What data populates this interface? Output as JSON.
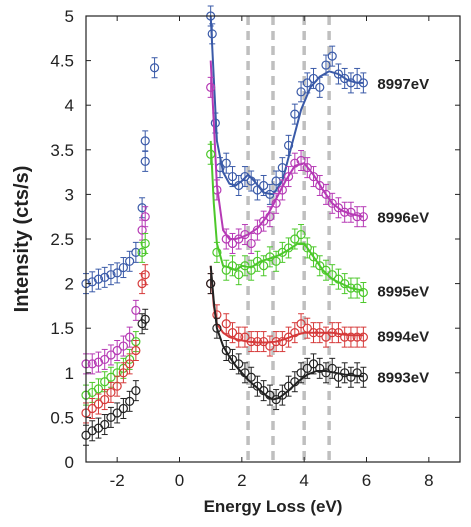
{
  "chart_data": {
    "type": "scatter",
    "xlabel": "Energy Loss (eV)",
    "ylabel": "Intensity (cts/s)",
    "xlim": [
      -3,
      9
    ],
    "ylim": [
      0,
      5
    ],
    "x_ticks": [
      -2,
      0,
      2,
      4,
      6,
      8
    ],
    "y_ticks": [
      0,
      0.5,
      1,
      1.5,
      2,
      2.5,
      3,
      3.5,
      4,
      4.5,
      5
    ],
    "x_tick_labels": [
      "-2",
      "0",
      "2",
      "4",
      "6",
      "8"
    ],
    "y_tick_labels": [
      "0",
      "0.5",
      "1",
      "1.5",
      "2",
      "2.5",
      "3",
      "3.5",
      "4",
      "4.5",
      "5"
    ],
    "reference_lines_x": [
      2.2,
      3.0,
      4.0,
      4.8
    ],
    "reference_line_color": "#bfbfbf",
    "grid": false,
    "legend": "labels at right end of each series",
    "series": [
      {
        "name": "8997eV",
        "color": "#3a5aa8",
        "points": [
          [
            -3.0,
            2.0
          ],
          [
            -2.8,
            2.02
          ],
          [
            -2.6,
            2.05
          ],
          [
            -2.4,
            2.07
          ],
          [
            -2.2,
            2.1
          ],
          [
            -2.0,
            2.12
          ],
          [
            -1.8,
            2.18
          ],
          [
            -1.6,
            2.25
          ],
          [
            -1.4,
            2.35
          ],
          [
            -1.2,
            2.85
          ],
          [
            -1.1,
            3.6
          ],
          [
            -1.1,
            3.37
          ],
          [
            -0.8,
            4.42
          ],
          [
            1.0,
            5.0
          ],
          [
            1.05,
            4.8
          ],
          [
            1.15,
            3.8
          ],
          [
            1.3,
            3.3
          ],
          [
            1.5,
            3.35
          ],
          [
            1.7,
            3.2
          ],
          [
            1.9,
            3.1
          ],
          [
            2.1,
            3.2
          ],
          [
            2.3,
            3.15
          ],
          [
            2.5,
            3.05
          ],
          [
            2.7,
            3.1
          ],
          [
            2.9,
            3.0
          ],
          [
            3.1,
            3.15
          ],
          [
            3.3,
            3.3
          ],
          [
            3.5,
            3.55
          ],
          [
            3.7,
            3.9
          ],
          [
            3.9,
            4.15
          ],
          [
            4.1,
            4.25
          ],
          [
            4.3,
            4.3
          ],
          [
            4.5,
            4.2
          ],
          [
            4.7,
            4.45
          ],
          [
            4.9,
            4.55
          ],
          [
            5.1,
            4.35
          ],
          [
            5.3,
            4.3
          ],
          [
            5.5,
            4.25
          ],
          [
            5.7,
            4.3
          ],
          [
            5.9,
            4.25
          ]
        ],
        "fit": [
          [
            1.0,
            5.0
          ],
          [
            1.1,
            4.3
          ],
          [
            1.2,
            3.6
          ],
          [
            1.4,
            3.25
          ],
          [
            1.6,
            3.12
          ],
          [
            1.8,
            3.1
          ],
          [
            2.0,
            3.15
          ],
          [
            2.2,
            3.22
          ],
          [
            2.4,
            3.15
          ],
          [
            2.7,
            3.02
          ],
          [
            3.0,
            3.0
          ],
          [
            3.3,
            3.15
          ],
          [
            3.6,
            3.55
          ],
          [
            3.9,
            3.95
          ],
          [
            4.2,
            4.2
          ],
          [
            4.5,
            4.32
          ],
          [
            4.8,
            4.38
          ],
          [
            5.1,
            4.35
          ],
          [
            5.4,
            4.28
          ],
          [
            5.7,
            4.25
          ],
          [
            5.9,
            4.25
          ]
        ]
      },
      {
        "name": "8996eV",
        "color": "#b63ab5",
        "points": [
          [
            -3.0,
            1.1
          ],
          [
            -2.8,
            1.1
          ],
          [
            -2.6,
            1.12
          ],
          [
            -2.4,
            1.15
          ],
          [
            -2.2,
            1.2
          ],
          [
            -2.0,
            1.25
          ],
          [
            -1.8,
            1.3
          ],
          [
            -1.6,
            1.4
          ],
          [
            -1.4,
            1.7
          ],
          [
            -1.2,
            2.6
          ],
          [
            -1.1,
            2.75
          ],
          [
            1.0,
            4.2
          ],
          [
            1.2,
            3.05
          ],
          [
            1.5,
            2.5
          ],
          [
            1.7,
            2.45
          ],
          [
            1.9,
            2.5
          ],
          [
            2.1,
            2.55
          ],
          [
            2.3,
            2.45
          ],
          [
            2.5,
            2.6
          ],
          [
            2.7,
            2.7
          ],
          [
            2.9,
            2.75
          ],
          [
            3.1,
            2.9
          ],
          [
            3.3,
            3.05
          ],
          [
            3.5,
            3.2
          ],
          [
            3.7,
            3.35
          ],
          [
            3.9,
            3.38
          ],
          [
            4.1,
            3.3
          ],
          [
            4.3,
            3.2
          ],
          [
            4.5,
            3.1
          ],
          [
            4.7,
            3.0
          ],
          [
            4.9,
            2.9
          ],
          [
            5.1,
            2.85
          ],
          [
            5.3,
            2.8
          ],
          [
            5.5,
            2.8
          ],
          [
            5.7,
            2.75
          ],
          [
            5.9,
            2.75
          ]
        ],
        "fit": [
          [
            1.0,
            4.5
          ],
          [
            1.1,
            3.8
          ],
          [
            1.2,
            3.1
          ],
          [
            1.4,
            2.6
          ],
          [
            1.6,
            2.5
          ],
          [
            1.8,
            2.5
          ],
          [
            2.0,
            2.52
          ],
          [
            2.2,
            2.55
          ],
          [
            2.5,
            2.62
          ],
          [
            2.8,
            2.75
          ],
          [
            3.1,
            2.95
          ],
          [
            3.4,
            3.15
          ],
          [
            3.7,
            3.32
          ],
          [
            4.0,
            3.35
          ],
          [
            4.3,
            3.22
          ],
          [
            4.6,
            3.05
          ],
          [
            4.9,
            2.9
          ],
          [
            5.2,
            2.82
          ],
          [
            5.5,
            2.78
          ],
          [
            5.9,
            2.75
          ]
        ]
      },
      {
        "name": "8995eV",
        "color": "#4cc82a",
        "points": [
          [
            -3.0,
            0.75
          ],
          [
            -2.8,
            0.78
          ],
          [
            -2.6,
            0.82
          ],
          [
            -2.4,
            0.9
          ],
          [
            -2.2,
            0.95
          ],
          [
            -2.0,
            1.0
          ],
          [
            -1.8,
            1.05
          ],
          [
            -1.6,
            1.15
          ],
          [
            -1.4,
            1.35
          ],
          [
            -1.2,
            2.35
          ],
          [
            -1.1,
            2.45
          ],
          [
            1.0,
            3.45
          ],
          [
            1.2,
            2.35
          ],
          [
            1.5,
            2.15
          ],
          [
            1.7,
            2.2
          ],
          [
            1.9,
            2.1
          ],
          [
            2.1,
            2.2
          ],
          [
            2.3,
            2.15
          ],
          [
            2.5,
            2.25
          ],
          [
            2.7,
            2.2
          ],
          [
            2.9,
            2.3
          ],
          [
            3.1,
            2.25
          ],
          [
            3.3,
            2.35
          ],
          [
            3.5,
            2.4
          ],
          [
            3.7,
            2.5
          ],
          [
            3.9,
            2.55
          ],
          [
            4.1,
            2.4
          ],
          [
            4.3,
            2.3
          ],
          [
            4.5,
            2.2
          ],
          [
            4.7,
            2.15
          ],
          [
            4.9,
            2.1
          ],
          [
            5.1,
            2.05
          ],
          [
            5.3,
            2.0
          ],
          [
            5.5,
            1.95
          ],
          [
            5.7,
            1.95
          ],
          [
            5.9,
            1.9
          ]
        ],
        "fit": [
          [
            1.0,
            3.6
          ],
          [
            1.1,
            2.9
          ],
          [
            1.2,
            2.45
          ],
          [
            1.4,
            2.2
          ],
          [
            1.6,
            2.18
          ],
          [
            1.8,
            2.15
          ],
          [
            2.0,
            2.2
          ],
          [
            2.3,
            2.18
          ],
          [
            2.6,
            2.25
          ],
          [
            2.9,
            2.28
          ],
          [
            3.2,
            2.32
          ],
          [
            3.5,
            2.38
          ],
          [
            3.8,
            2.45
          ],
          [
            4.0,
            2.45
          ],
          [
            4.3,
            2.3
          ],
          [
            4.6,
            2.15
          ],
          [
            4.9,
            2.05
          ],
          [
            5.2,
            2.0
          ],
          [
            5.5,
            1.95
          ],
          [
            5.9,
            1.92
          ]
        ]
      },
      {
        "name": "8994eV",
        "color": "#d63a3a",
        "points": [
          [
            -3.0,
            0.55
          ],
          [
            -2.8,
            0.6
          ],
          [
            -2.6,
            0.65
          ],
          [
            -2.4,
            0.7
          ],
          [
            -2.2,
            0.78
          ],
          [
            -2.0,
            0.85
          ],
          [
            -1.8,
            1.0
          ],
          [
            -1.6,
            1.1
          ],
          [
            -1.4,
            1.25
          ],
          [
            -1.2,
            2.0
          ],
          [
            -1.1,
            2.1
          ],
          [
            1.0,
            2.0
          ],
          [
            1.2,
            1.65
          ],
          [
            1.5,
            1.55
          ],
          [
            1.7,
            1.45
          ],
          [
            1.9,
            1.4
          ],
          [
            2.1,
            1.4
          ],
          [
            2.3,
            1.35
          ],
          [
            2.5,
            1.35
          ],
          [
            2.7,
            1.35
          ],
          [
            2.9,
            1.3
          ],
          [
            3.1,
            1.35
          ],
          [
            3.3,
            1.35
          ],
          [
            3.5,
            1.4
          ],
          [
            3.7,
            1.45
          ],
          [
            3.9,
            1.55
          ],
          [
            4.1,
            1.5
          ],
          [
            4.3,
            1.45
          ],
          [
            4.5,
            1.45
          ],
          [
            4.7,
            1.4
          ],
          [
            4.9,
            1.45
          ],
          [
            5.1,
            1.45
          ],
          [
            5.3,
            1.4
          ],
          [
            5.5,
            1.4
          ],
          [
            5.7,
            1.4
          ],
          [
            5.9,
            1.4
          ]
        ],
        "fit": [
          [
            1.0,
            2.2
          ],
          [
            1.1,
            1.75
          ],
          [
            1.2,
            1.55
          ],
          [
            1.4,
            1.45
          ],
          [
            1.6,
            1.4
          ],
          [
            1.9,
            1.37
          ],
          [
            2.2,
            1.35
          ],
          [
            2.5,
            1.34
          ],
          [
            2.8,
            1.34
          ],
          [
            3.1,
            1.35
          ],
          [
            3.4,
            1.38
          ],
          [
            3.7,
            1.42
          ],
          [
            4.0,
            1.45
          ],
          [
            4.3,
            1.45
          ],
          [
            4.6,
            1.45
          ],
          [
            4.9,
            1.45
          ],
          [
            5.2,
            1.43
          ],
          [
            5.5,
            1.42
          ],
          [
            5.9,
            1.42
          ]
        ]
      },
      {
        "name": "8993eV",
        "color": "#222222",
        "points": [
          [
            -3.0,
            0.3
          ],
          [
            -2.8,
            0.35
          ],
          [
            -2.6,
            0.38
          ],
          [
            -2.4,
            0.42
          ],
          [
            -2.2,
            0.5
          ],
          [
            -2.0,
            0.55
          ],
          [
            -1.8,
            0.6
          ],
          [
            -1.6,
            0.68
          ],
          [
            -1.4,
            0.8
          ],
          [
            -1.2,
            1.55
          ],
          [
            -1.1,
            1.6
          ],
          [
            1.0,
            2.0
          ],
          [
            1.2,
            1.5
          ],
          [
            1.5,
            1.25
          ],
          [
            1.7,
            1.15
          ],
          [
            1.9,
            1.1
          ],
          [
            2.1,
            1.0
          ],
          [
            2.3,
            0.95
          ],
          [
            2.5,
            0.85
          ],
          [
            2.7,
            0.8
          ],
          [
            2.9,
            0.75
          ],
          [
            3.1,
            0.7
          ],
          [
            3.3,
            0.75
          ],
          [
            3.5,
            0.85
          ],
          [
            3.7,
            0.9
          ],
          [
            3.9,
            1.0
          ],
          [
            4.1,
            1.05
          ],
          [
            4.3,
            1.1
          ],
          [
            4.5,
            1.05
          ],
          [
            4.7,
            1.0
          ],
          [
            4.9,
            1.05
          ],
          [
            5.1,
            0.95
          ],
          [
            5.3,
            1.0
          ],
          [
            5.5,
            0.95
          ],
          [
            5.7,
            1.0
          ],
          [
            5.9,
            0.95
          ]
        ],
        "fit": [
          [
            1.0,
            2.2
          ],
          [
            1.1,
            1.8
          ],
          [
            1.2,
            1.5
          ],
          [
            1.4,
            1.3
          ],
          [
            1.6,
            1.18
          ],
          [
            1.8,
            1.08
          ],
          [
            2.0,
            1.0
          ],
          [
            2.2,
            0.92
          ],
          [
            2.5,
            0.83
          ],
          [
            2.8,
            0.74
          ],
          [
            3.0,
            0.7
          ],
          [
            3.2,
            0.72
          ],
          [
            3.5,
            0.8
          ],
          [
            3.8,
            0.9
          ],
          [
            4.1,
            0.98
          ],
          [
            4.4,
            1.02
          ],
          [
            4.7,
            1.02
          ],
          [
            5.0,
            1.0
          ],
          [
            5.3,
            0.98
          ],
          [
            5.6,
            0.97
          ],
          [
            5.9,
            0.96
          ]
        ]
      }
    ]
  }
}
